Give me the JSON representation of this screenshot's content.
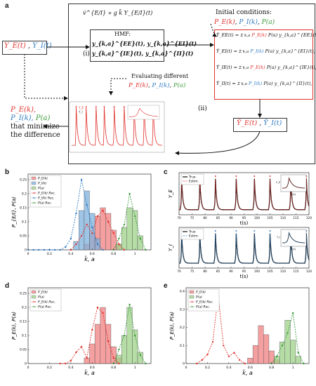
{
  "panel_a": {
    "letter": "a",
    "left_input": {
      "ye": "Y_E(t)",
      "sep": ",",
      "yi": "Y_I(t)"
    },
    "proportional": "v̇^{E/I} ∝ g k̃ Y_{E/I}(t)",
    "hmf": {
      "title": "HMF:",
      "line1": "y_{k,a}^{EE}(t), y_{k,a}^{EI}(t)",
      "line2": "y_{k,a}^{IE}(t), y_{k,a}^{II}(t)"
    },
    "initial": {
      "title": "Initial conditions:",
      "pe": "P_E(k)",
      "pi": "P_I(k)",
      "pa": "P(a)"
    },
    "equations": [
      {
        "lhs": "Ỹ_EE(t) =",
        "p1": "P_E(k)",
        "rest": "P(a) y_{k,a}^{EE}(t),",
        "sum": "Σ k,a"
      },
      {
        "lhs": "Ỹ_EI(t) =",
        "p1": "P_I(k)",
        "rest": "P(a) y_{k,a}^{EI}(t),",
        "sum": "Σ k,a"
      },
      {
        "lhs": "Ỹ_IE(t) =",
        "p1": "P_E(k)",
        "rest": "P(a) y_{k,a}^{IE}(t),",
        "sum": "Σ k,a"
      },
      {
        "lhs": "Ỹ_II(t) =",
        "p1": "P_I(k)",
        "rest": "P(a) y_{k,a}^{II}(t),",
        "sum": "Σ k,a"
      }
    ],
    "label_i": "(i)",
    "label_ii": "(ii)",
    "evaluating": "Evaluating different",
    "eval_pe": "P_E(k)",
    "eval_pi": "P_I(k)",
    "eval_pa": "P(a)",
    "result": {
      "ye": "Ỹ_E(t)",
      "sep": ",",
      "yi": "Ỹ_I(t)"
    },
    "output": {
      "pe": "P_E(k),",
      "pi": "P_I(k),",
      "pa": "P(a)",
      "line2": "that minimize",
      "line3": "the difference"
    },
    "mini_legend": [
      "Y_E",
      "Y_I"
    ],
    "colors": {
      "red": "#e0332e",
      "blue": "#2f7bc1",
      "green": "#3a9a3a"
    }
  },
  "panel_b": {
    "letter": "b",
    "ylabel": "P_{E/I}, P(a)",
    "xlabel": "k̃, a",
    "legend": [
      "P_E(k)",
      "P_I(k)",
      "P(a)",
      "P_E(k) Rec.",
      "P_I(k) Rec.",
      "P(a) Rec."
    ],
    "xticks": [
      "0",
      "0.2",
      "0.4",
      "0.6",
      "0.8",
      "1"
    ],
    "yticks": [
      "0",
      "0.05",
      "0.1",
      "0.15",
      "0.2",
      "0.25"
    ]
  },
  "panel_c": {
    "letter": "c",
    "legend_true": "True",
    "legend_est": "Estim.",
    "ylabel_top": "Y_E",
    "ylabel_bottom": "Y_I",
    "xlabel": "t(s)",
    "xticks": [
      "70",
      "75",
      "80",
      "85",
      "90",
      "95",
      "100",
      "105",
      "110",
      "115",
      "120"
    ],
    "inset_xlabel": "t(s)",
    "inset_ylabel_top": "Y_E",
    "inset_ylabel_bottom": "Y_I"
  },
  "panel_d": {
    "letter": "d",
    "ylabel": "P_E(k), P(a)",
    "xlabel": "k̃, a",
    "legend": [
      "P_E(k)",
      "P(a)",
      "P_E(k) Rec.",
      "P(a) Rec."
    ],
    "xticks": [
      "0",
      "0.2",
      "0.4",
      "0.6",
      "0.8",
      "1"
    ],
    "yticks": [
      "0",
      "0.05",
      "0.1",
      "0.15",
      "0.2",
      "0.25"
    ]
  },
  "panel_e": {
    "letter": "e",
    "ylabel": "P_E(k), P(a)",
    "xlabel": "k̃, a",
    "legend": [
      "P_E(k)",
      "P(a)",
      "P_E(k) Rec.",
      "P(a) Rec."
    ],
    "xticks": [
      "0",
      "0.2",
      "0.4",
      "0.6",
      "0.8",
      "1"
    ],
    "yticks": [
      "0",
      "0.1",
      "0.2",
      "0.3",
      "0.4"
    ]
  },
  "chart_data": [
    {
      "type": "bar",
      "panel": "b",
      "xlabel": "k̃, a",
      "ylabel": "P_{E/I}, P(a)",
      "xlim": [
        0,
        1.15
      ],
      "ylim": [
        0,
        0.27
      ],
      "bin_width": 0.05,
      "series": [
        {
          "name": "P_E(k)",
          "color": "#f08080",
          "x": [
            0.55,
            0.6,
            0.65,
            0.7,
            0.75,
            0.8,
            0.85
          ],
          "values": [
            0.02,
            0.06,
            0.12,
            0.15,
            0.13,
            0.07,
            0.02
          ]
        },
        {
          "name": "P_I(k)",
          "color": "#7fb2dd",
          "x": [
            0.45,
            0.5,
            0.55,
            0.6,
            0.65
          ],
          "values": [
            0.03,
            0.14,
            0.21,
            0.13,
            0.04
          ]
        },
        {
          "name": "P(a)",
          "color": "#9fd28a",
          "x": [
            0.85,
            0.9,
            0.95,
            1.0,
            1.05
          ],
          "values": [
            0.02,
            0.08,
            0.15,
            0.14,
            0.05
          ]
        }
      ],
      "rec_series": [
        {
          "name": "P_E(k) Rec.",
          "color": "#e0332e",
          "x": [
            0.4,
            0.45,
            0.5,
            0.55,
            0.6,
            0.65,
            0.7,
            0.75,
            0.8,
            0.85,
            0.9
          ],
          "values": [
            0.0,
            0.02,
            0.05,
            0.09,
            0.06,
            0.12,
            0.14,
            0.1,
            0.06,
            0.02,
            0.0
          ]
        },
        {
          "name": "P_I(k) Rec.",
          "color": "#2f7bc1",
          "x": [
            0.0,
            0.05,
            0.1,
            0.15,
            0.2,
            0.25,
            0.3,
            0.35,
            0.4,
            0.45,
            0.5,
            0.55,
            0.6,
            0.65,
            0.7
          ],
          "values": [
            0.0,
            0.0,
            0.0,
            0.0,
            0.0,
            0.0,
            0.0,
            0.01,
            0.04,
            0.13,
            0.25,
            0.16,
            0.08,
            0.02,
            0.0
          ]
        },
        {
          "name": "P(a) Rec.",
          "color": "#3a9a3a",
          "x": [
            0.8,
            0.85,
            0.9,
            0.95,
            1.0,
            1.05,
            1.1
          ],
          "values": [
            0.0,
            0.04,
            0.09,
            0.2,
            0.12,
            0.04,
            0.0
          ]
        }
      ]
    },
    {
      "type": "line",
      "panel": "c",
      "xlabel": "t(s)",
      "xlim": [
        70,
        120
      ],
      "spike_times": [
        71,
        78,
        84,
        92,
        99,
        105,
        113,
        119
      ],
      "series": [
        {
          "name": "True",
          "color": "#111111"
        },
        {
          "name": "Estim.",
          "color": "#e0332e"
        },
        {
          "name": "Estim.",
          "color": "#2f7bc1"
        }
      ]
    },
    {
      "type": "bar",
      "panel": "d",
      "xlabel": "k̃, a",
      "ylabel": "P_E(k), P(a)",
      "xlim": [
        0,
        1.15
      ],
      "ylim": [
        0,
        0.27
      ],
      "bin_width": 0.05,
      "series": [
        {
          "name": "P_E(k)",
          "color": "#f08080",
          "x": [
            0.55,
            0.6,
            0.65,
            0.7,
            0.75,
            0.8,
            0.85
          ],
          "values": [
            0.02,
            0.07,
            0.14,
            0.2,
            0.14,
            0.06,
            0.02
          ]
        },
        {
          "name": "P(a)",
          "color": "#9fd28a",
          "x": [
            0.85,
            0.9,
            0.95,
            1.0,
            1.05
          ],
          "values": [
            0.03,
            0.1,
            0.2,
            0.12,
            0.04
          ]
        }
      ],
      "rec_series": [
        {
          "name": "P_E(k) Rec.",
          "color": "#e0332e",
          "x": [
            0.3,
            0.35,
            0.4,
            0.45,
            0.5,
            0.55,
            0.6,
            0.65,
            0.7,
            0.75,
            0.8,
            0.85
          ],
          "values": [
            0.0,
            0.0,
            0.01,
            0.04,
            0.06,
            0.02,
            0.12,
            0.2,
            0.18,
            0.08,
            0.02,
            0.0
          ]
        },
        {
          "name": "P(a) Rec.",
          "color": "#3a9a3a",
          "x": [
            0.8,
            0.85,
            0.9,
            0.95,
            1.0,
            1.05,
            1.1
          ],
          "values": [
            0.0,
            0.05,
            0.1,
            0.21,
            0.1,
            0.03,
            0.0
          ]
        }
      ]
    },
    {
      "type": "bar",
      "panel": "e",
      "xlabel": "k̃, a",
      "ylabel": "P_E(k), P(a)",
      "xlim": [
        0,
        1.15
      ],
      "ylim": [
        0,
        0.42
      ],
      "bin_width": 0.05,
      "series": [
        {
          "name": "P_E(k)",
          "color": "#f08080",
          "x": [
            0.6,
            0.65,
            0.7,
            0.75,
            0.8,
            0.85
          ],
          "values": [
            0.03,
            0.1,
            0.21,
            0.16,
            0.07,
            0.02
          ]
        },
        {
          "name": "P(a)",
          "color": "#9fd28a",
          "x": [
            0.85,
            0.9,
            0.95,
            1.0,
            1.05
          ],
          "values": [
            0.04,
            0.12,
            0.24,
            0.13,
            0.04
          ]
        }
      ],
      "rec_series": [
        {
          "name": "P_E(k) Rec.",
          "color": "#e0332e",
          "x": [
            0.1,
            0.15,
            0.2,
            0.25,
            0.3,
            0.35,
            0.4,
            0.45,
            0.5,
            0.55
          ],
          "values": [
            0.0,
            0.02,
            0.05,
            0.12,
            0.38,
            0.1,
            0.04,
            0.06,
            0.02,
            0.0
          ]
        },
        {
          "name": "P(a) Rec.",
          "color": "#3a9a3a",
          "x": [
            0.8,
            0.85,
            0.9,
            0.95,
            1.0,
            1.05,
            1.1
          ],
          "values": [
            0.0,
            0.04,
            0.1,
            0.17,
            0.28,
            0.06,
            0.0
          ]
        }
      ]
    }
  ]
}
